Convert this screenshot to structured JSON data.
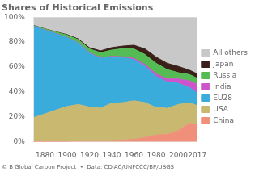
{
  "chart_data": {
    "type": "area",
    "title": "Shares of Historical Emissions",
    "annotations": [
      "© B Global Carbon Project  •  Data: CDIAC/UNFCCC/BP/USGS"
    ],
    "x": [
      1870,
      1880,
      1890,
      1900,
      1910,
      1920,
      1930,
      1940,
      1950,
      1960,
      1970,
      1980,
      1990,
      2000,
      2010,
      2017
    ],
    "series": [
      {
        "name": "China",
        "color": "#f0907a",
        "values": [
          0.5,
          0.5,
          0.5,
          0.5,
          1.0,
          1.0,
          1.0,
          1.0,
          1.5,
          2.0,
          3.5,
          5.5,
          6.0,
          9.0,
          15.0,
          14.0
        ]
      },
      {
        "name": "USA",
        "color": "#c8b870",
        "values": [
          19.0,
          22.0,
          25.0,
          28.0,
          29.0,
          27.0,
          26.0,
          30.0,
          30.0,
          31.0,
          28.0,
          22.0,
          21.0,
          21.0,
          16.5,
          15.0
        ]
      },
      {
        "name": "EU28",
        "color": "#3aacdc",
        "values": [
          73.0,
          67.0,
          61.0,
          55.0,
          49.0,
          43.0,
          40.0,
          37.0,
          36.0,
          33.0,
          29.0,
          25.0,
          21.0,
          17.0,
          12.0,
          10.0
        ]
      },
      {
        "name": "India",
        "color": "#cc55cc",
        "values": [
          0.2,
          0.2,
          0.3,
          0.3,
          0.4,
          0.5,
          0.5,
          0.6,
          0.8,
          1.0,
          1.5,
          2.0,
          2.5,
          3.5,
          5.5,
          7.0
        ]
      },
      {
        "name": "Russia",
        "color": "#55bb55",
        "values": [
          0.5,
          0.8,
          1.2,
          1.8,
          2.5,
          3.0,
          4.0,
          5.0,
          6.5,
          7.5,
          8.0,
          8.5,
          7.5,
          5.0,
          5.0,
          5.0
        ]
      },
      {
        "name": "Japan",
        "color": "#3a2018",
        "values": [
          0.1,
          0.1,
          0.2,
          0.4,
          0.6,
          1.0,
          1.5,
          2.0,
          2.0,
          3.0,
          4.5,
          5.0,
          5.0,
          5.0,
          3.5,
          3.5
        ]
      },
      {
        "name": "All others",
        "color": "#c8c8c8",
        "values": [
          6.7,
          9.4,
          11.8,
          14.0,
          17.5,
          24.5,
          27.0,
          24.4,
          23.2,
          22.5,
          25.5,
          32.0,
          37.0,
          39.5,
          42.5,
          45.5
        ]
      }
    ],
    "stacked": true,
    "xlim": [
      1870,
      2017
    ],
    "xticks": [
      1880,
      1900,
      1920,
      1940,
      1960,
      1980,
      2000,
      2017
    ],
    "ylim": [
      0,
      100
    ],
    "yticks": [
      {
        "value": 0,
        "label": "0%"
      },
      {
        "value": 20,
        "label": "20%"
      },
      {
        "value": 40,
        "label": "40%"
      },
      {
        "value": 60,
        "label": "60%"
      },
      {
        "value": 80,
        "label": "80%"
      },
      {
        "value": 100,
        "label": "100%"
      }
    ],
    "grid": false,
    "legend": "right"
  }
}
